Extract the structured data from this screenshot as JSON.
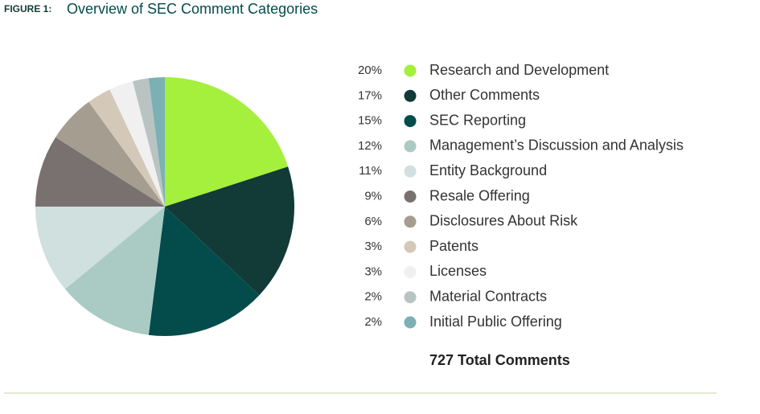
{
  "chart_data": {
    "type": "pie",
    "figure_label": "FIGURE 1:",
    "title": "Overview of SEC Comment Categories",
    "categories": [
      "Research and Development",
      "Other Comments",
      "SEC Reporting",
      "Management’s Discussion and Analysis",
      "Entity Background",
      "Resale Offering",
      "Disclosures About Risk",
      "Patents",
      "Licenses",
      "Material Contracts",
      "Initial Public Offering"
    ],
    "values": [
      20,
      17,
      15,
      12,
      11,
      9,
      6,
      3,
      3,
      2,
      2
    ],
    "value_labels": [
      "20%",
      "17%",
      "15%",
      "12%",
      "11%",
      "9%",
      "6%",
      "3%",
      "3%",
      "2%",
      "2%"
    ],
    "colors": [
      "#a4f03c",
      "#123a36",
      "#044c4c",
      "#aacbc4",
      "#cfe0df",
      "#797170",
      "#a69d91",
      "#d4c9b9",
      "#f0f0f0",
      "#b9c4c2",
      "#7bb1b5"
    ],
    "total_label": "727 Total Comments"
  }
}
